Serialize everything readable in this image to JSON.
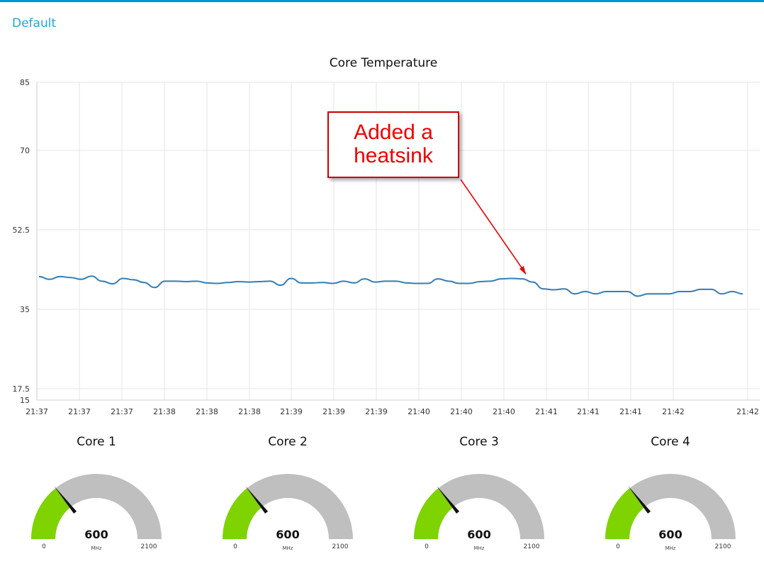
{
  "group": {
    "title": "Default"
  },
  "chart_data": {
    "type": "line",
    "title": "Core Temperature",
    "y_ticks": [
      15,
      17.5,
      35,
      52.5,
      70,
      85
    ],
    "ylim": [
      15,
      85
    ],
    "x_tick_labels": [
      "21:37",
      "21:37",
      "21:37",
      "21:38",
      "21:38",
      "21:38",
      "21:39",
      "21:39",
      "21:39",
      "21:40",
      "21:40",
      "21:40",
      "21:41",
      "21:41",
      "21:41",
      "21:42",
      "21:42"
    ],
    "grid": true,
    "series_color": "#2f7fb8",
    "series": [
      {
        "values": [
          42.2,
          41.6,
          42.2,
          42.0,
          41.6,
          42.3,
          41.2,
          40.6,
          41.8,
          41.5,
          40.9,
          39.8,
          41.2,
          41.2,
          41.1,
          41.2,
          40.8,
          40.7,
          40.9,
          41.1,
          41.0,
          41.1,
          41.2,
          40.3,
          41.8,
          40.8,
          40.8,
          40.9,
          40.7,
          41.2,
          40.8,
          41.7,
          41.0,
          41.2,
          41.2,
          40.8,
          40.7,
          40.7,
          41.7,
          41.2,
          40.7,
          40.7,
          41.1,
          41.2,
          41.7,
          41.8,
          41.7,
          41.0,
          39.5,
          39.3,
          39.5,
          38.4,
          38.9,
          38.4,
          38.9,
          38.9,
          38.9,
          37.9,
          38.4,
          38.4,
          38.4,
          38.9,
          38.9,
          39.4,
          39.4,
          38.4,
          38.9,
          38.4
        ]
      }
    ],
    "annotation": [
      "Added a",
      "heatsink"
    ]
  },
  "gauges": [
    {
      "title": "Core 1",
      "value": 600,
      "min": 0,
      "max": 2100,
      "units": "MHz",
      "min_label": "0",
      "max_label": "2100",
      "value_label": "600"
    },
    {
      "title": "Core 2",
      "value": 600,
      "min": 0,
      "max": 2100,
      "units": "MHz",
      "min_label": "0",
      "max_label": "2100",
      "value_label": "600"
    },
    {
      "title": "Core 3",
      "value": 600,
      "min": 0,
      "max": 2100,
      "units": "MHz",
      "min_label": "0",
      "max_label": "2100",
      "value_label": "600"
    },
    {
      "title": "Core 4",
      "value": 600,
      "min": 0,
      "max": 2100,
      "units": "MHz",
      "min_label": "0",
      "max_label": "2100",
      "value_label": "600"
    }
  ],
  "colors": {
    "gauge_fill": "#7ed300",
    "gauge_track": "#bfbfbf",
    "accent": "#1fa6dc",
    "annotation": "#e00000"
  }
}
